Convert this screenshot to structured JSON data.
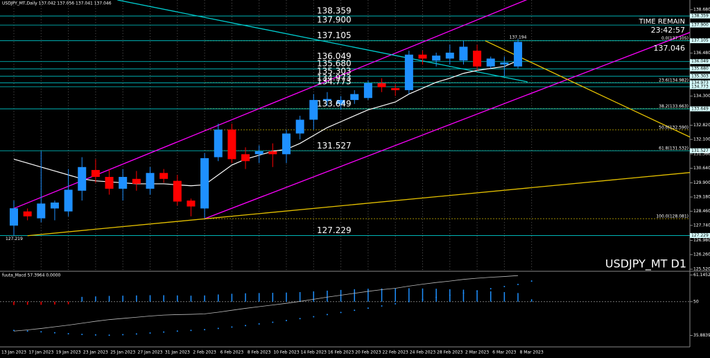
{
  "header": "USDJPY_MT,Daily  137.042 137.056 137.041 137.046",
  "chart_data": [
    {
      "type": "candlestick",
      "symbol": "USDJPY_MT D1",
      "time_remain_label": "TIME REMAIN",
      "time_remain": "23:42:57",
      "price": "137.046",
      "high_label": "137.194",
      "low_label": "127.219",
      "categories": [
        "13 Jan 2023",
        null,
        "17 Jan 2023",
        null,
        "19 Jan 2023",
        null,
        "23 Jan 2023",
        null,
        "25 Jan 2023",
        null,
        "27 Jan 2023",
        null,
        "31 Jan 2023",
        null,
        "2 Feb 2023",
        null,
        "6 Feb 2023",
        null,
        "8 Feb 2023",
        null,
        "10 Feb 2023",
        null,
        "14 Feb 2023",
        null,
        "16 Feb 2023",
        null,
        "20 Feb 2023",
        null,
        "22 Feb 2023",
        null,
        "24 Feb 2023",
        null,
        "28 Feb 2023",
        null,
        "2 Mar 2023",
        null,
        "6 Mar 2023",
        null,
        "8 Mar 2023"
      ],
      "open": [
        127.73,
        128.45,
        128.1,
        128.6,
        128.45,
        129.5,
        130.55,
        130.2,
        129.6,
        130.1,
        129.6,
        130.4,
        130.0,
        129.0,
        128.6,
        131.2,
        132.6,
        131.35,
        131.35,
        131.5,
        131.35,
        132.4,
        133.1,
        134.05,
        133.9,
        134.1,
        134.2,
        134.95,
        134.7,
        134.6,
        136.4,
        136.1,
        136.2,
        136.1,
        136.6,
        135.8,
        135.9,
        135.8,
        null
      ],
      "high": [
        129.0,
        128.6,
        131.5,
        129.0,
        130.6,
        131.2,
        131.1,
        130.6,
        130.6,
        130.5,
        130.7,
        130.6,
        130.3,
        129.1,
        131.4,
        132.9,
        132.9,
        131.7,
        131.8,
        131.9,
        132.6,
        133.3,
        134.4,
        134.5,
        134.3,
        134.6,
        135.1,
        135.2,
        134.9,
        136.6,
        136.6,
        136.5,
        136.9,
        137.1,
        136.9,
        136.3,
        136.3,
        137.194,
        null
      ],
      "low": [
        127.219,
        128.0,
        127.9,
        128.0,
        128.2,
        129.0,
        129.9,
        129.3,
        129.0,
        129.5,
        129.3,
        129.9,
        128.75,
        128.2,
        128.1,
        131.0,
        130.9,
        130.6,
        130.9,
        130.7,
        130.9,
        132.1,
        132.6,
        133.8,
        133.6,
        133.9,
        134.1,
        134.5,
        134.3,
        134.4,
        135.9,
        135.8,
        135.9,
        135.9,
        135.6,
        135.7,
        135.3,
        135.7,
        null
      ],
      "close": [
        128.61,
        128.2,
        128.85,
        128.9,
        129.55,
        130.7,
        130.2,
        129.6,
        130.2,
        129.85,
        130.4,
        130.1,
        128.95,
        128.7,
        131.15,
        132.6,
        131.1,
        131.0,
        131.5,
        131.35,
        132.4,
        133.1,
        134.1,
        134.15,
        134.1,
        134.4,
        134.95,
        134.75,
        134.6,
        136.4,
        136.2,
        136.35,
        136.5,
        136.8,
        135.8,
        136.2,
        136.0,
        137.046,
        null
      ],
      "up_color": "#1e90ff",
      "down_color": "#ff0000",
      "ylim": [
        125.45,
        139.17
      ],
      "yticks": [
        {
          "value": 138.68,
          "label": "138.680"
        },
        {
          "value": 136.48,
          "label": "136.480"
        },
        {
          "value": 134.3,
          "label": "134.300"
        },
        {
          "value": 132.82,
          "label": "132.820"
        },
        {
          "value": 132.1,
          "label": "132.100"
        },
        {
          "value": 131.36,
          "label": "131.360"
        },
        {
          "value": 130.64,
          "label": "130.640"
        },
        {
          "value": 129.9,
          "label": "129.900"
        },
        {
          "value": 129.18,
          "label": "129.180"
        },
        {
          "value": 128.46,
          "label": "128.460"
        },
        {
          "value": 127.74,
          "label": "127.740"
        },
        {
          "value": 126.98,
          "label": "126.980"
        },
        {
          "value": 126.26,
          "label": "126.260"
        },
        {
          "value": 125.52,
          "label": "125.520"
        }
      ],
      "levels": [
        138.359,
        {
          "value": 137.9,
          "label": "137.900"
        },
        137.105,
        136.049,
        {
          "value": 135.68,
          "label": "135.680"
        },
        135.303,
        134.973,
        134.773,
        133.649,
        131.527,
        127.229
      ],
      "level_color": "#00ced1",
      "fib": [
        {
          "value": 137.105,
          "label": "0.0(137.105)"
        },
        {
          "value": 134.982,
          "label": "23.6(134.982)"
        },
        {
          "value": 133.663,
          "label": "38.2(133.663)"
        },
        {
          "value": 132.59,
          "label": "50.0(132.590)"
        },
        {
          "value": 131.532,
          "label": "61.8(131.532)"
        },
        {
          "value": 128.081,
          "label": "100.0(128.081)"
        }
      ],
      "fib_color": "#b8a200",
      "lines": [
        {
          "color": "#ffffff",
          "values": [
            131.1,
            130.9,
            130.7,
            130.5,
            130.3,
            130.1,
            130.0,
            129.95,
            129.9,
            129.85,
            129.85,
            129.85,
            129.8,
            129.75,
            129.8,
            130.3,
            130.8,
            131.1,
            131.3,
            131.5,
            131.6,
            131.9,
            132.3,
            132.7,
            133.0,
            133.3,
            133.6,
            133.8,
            134.0,
            134.4,
            134.7,
            135.0,
            135.2,
            135.45,
            135.6,
            135.7,
            135.8,
            136.1,
            null
          ]
        }
      ],
      "trendlines": [
        {
          "color": "#ff00ff",
          "x": [
            0,
            37.7
          ],
          "y": [
            128.6,
            139.2
          ]
        },
        {
          "color": "#ff00ff",
          "x": [
            14,
            49.9
          ],
          "y": [
            128.081,
            137.6
          ]
        },
        {
          "color": "#e6c200",
          "x": [
            1,
            49.9
          ],
          "y": [
            127.219,
            130.44
          ]
        },
        {
          "color": "#e6c200",
          "x": [
            34.6,
            49.9
          ],
          "y": [
            137.1,
            132.13
          ]
        },
        {
          "color": "#00ced1",
          "x": [
            7.6,
            37.7
          ],
          "y": [
            139.17,
            135.02
          ]
        }
      ]
    },
    {
      "type": "macd",
      "title": "fuuta_Macd 57.3964 0.0000",
      "ylim": [
        31.1,
        62.4
      ],
      "yticks": [
        61.1452,
        50,
        35.8839
      ],
      "base": 50,
      "histogram": [
        48.6,
        48.7,
        48.7,
        48.8,
        48.9,
        52.0,
        52.2,
        52.4,
        52.5,
        52.6,
        52.7,
        52.7,
        52.6,
        52.5,
        52.6,
        53.0,
        53.3,
        53.5,
        53.6,
        53.7,
        53.8,
        54.0,
        54.3,
        54.6,
        54.9,
        55.2,
        55.4,
        55.5,
        55.5,
        55.6,
        55.5,
        55.4,
        55.2,
        55.0,
        54.6,
        54.3,
        54.0,
        53.6,
        51.0
      ],
      "line": [
        37.7,
        38.2,
        38.8,
        39.5,
        40.2,
        41.0,
        41.8,
        42.5,
        43.0,
        43.5,
        44.0,
        44.4,
        44.6,
        44.7,
        44.9,
        45.6,
        46.4,
        47.2,
        47.9,
        48.6,
        49.3,
        50.1,
        51.0,
        51.9,
        52.7,
        53.5,
        54.3,
        55.0,
        55.6,
        56.5,
        57.3,
        58.0,
        58.6,
        59.3,
        59.8,
        60.2,
        60.5,
        60.9,
        null
      ],
      "signal": [
        38.0,
        37.7,
        37.4,
        37.0,
        36.6,
        36.3,
        36.1,
        36.0,
        36.2,
        36.5,
        36.9,
        37.3,
        37.7,
        38.0,
        38.3,
        38.8,
        39.4,
        40.0,
        40.7,
        41.4,
        42.1,
        42.9,
        43.7,
        44.6,
        45.5,
        46.4,
        47.3,
        48.2,
        49.1,
        50.0,
        50.9,
        51.8,
        52.7,
        53.6,
        54.5,
        55.4,
        56.3,
        57.2,
        58.6
      ],
      "up_color": "#1e90ff",
      "down_color": "#ff0000",
      "line_color": "#bbbbbb",
      "signal_color": "#1e90ff"
    }
  ]
}
